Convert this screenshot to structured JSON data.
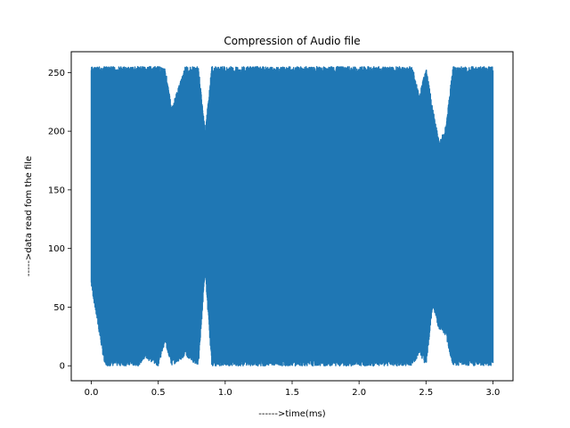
{
  "chart_data": {
    "type": "line",
    "title": "Compression of Audio file",
    "xlabel": "------>time(ms)",
    "ylabel": "----->data read fom the file",
    "xlim": [
      -0.15,
      3.15
    ],
    "ylim": [
      -12.75,
      267.75
    ],
    "xticks": [
      0.0,
      0.5,
      1.0,
      1.5,
      2.0,
      2.5,
      3.0
    ],
    "xtick_labels": [
      "0.0",
      "0.5",
      "1.0",
      "1.5",
      "2.0",
      "2.5",
      "3.0"
    ],
    "yticks": [
      0,
      50,
      100,
      150,
      200,
      250
    ],
    "ytick_labels": [
      "0",
      "50",
      "100",
      "150",
      "200",
      "250"
    ],
    "grid": false,
    "legend": "none",
    "series": [
      {
        "color": "#1f77b4",
        "x": [
          0.0,
          0.1,
          0.2,
          0.3,
          0.35,
          0.4,
          0.5,
          0.55,
          0.6,
          0.7,
          0.8,
          0.85,
          0.9,
          1.0,
          1.1,
          1.2,
          1.3,
          1.4,
          1.5,
          1.6,
          1.7,
          1.8,
          1.9,
          2.0,
          2.1,
          2.2,
          2.3,
          2.4,
          2.45,
          2.5,
          2.55,
          2.6,
          2.65,
          2.7,
          2.8,
          2.9,
          3.0
        ],
        "ymin": [
          68,
          0,
          0,
          0,
          0,
          6,
          0,
          20,
          0,
          8,
          0,
          80,
          0,
          0,
          0,
          0,
          0,
          0,
          0,
          0,
          0,
          0,
          0,
          0,
          0,
          0,
          0,
          0,
          10,
          0,
          50,
          30,
          25,
          0,
          0,
          0,
          0
        ],
        "ymax": [
          255,
          255,
          255,
          255,
          255,
          255,
          255,
          255,
          220,
          255,
          255,
          200,
          255,
          255,
          255,
          255,
          255,
          255,
          255,
          255,
          255,
          255,
          255,
          255,
          255,
          255,
          255,
          255,
          230,
          255,
          220,
          190,
          205,
          255,
          255,
          255,
          255
        ]
      }
    ]
  }
}
